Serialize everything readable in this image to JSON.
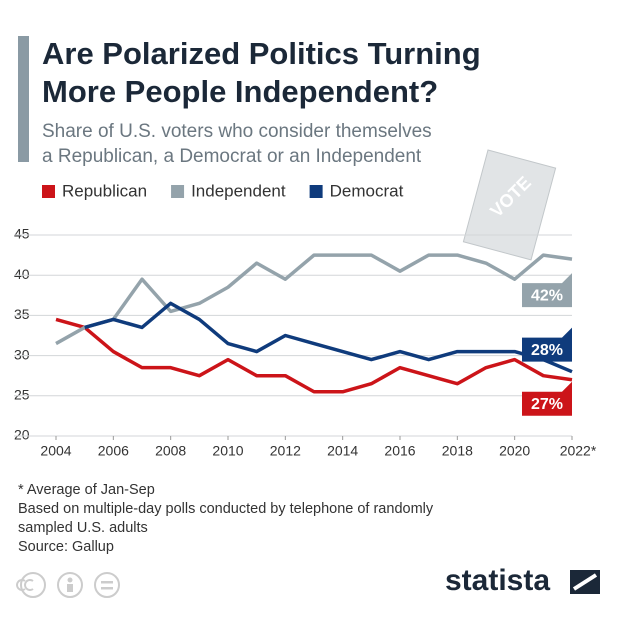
{
  "chart_data": {
    "type": "line",
    "title": [
      "Are Polarized Politics Turning",
      "More People Independent?"
    ],
    "subtitle": [
      "Share of U.S. voters who consider themselves",
      "a Republican, a Democrat or an Independent"
    ],
    "illustration_text": "VOTE",
    "x": [
      2004,
      2005,
      2006,
      2007,
      2008,
      2009,
      2010,
      2011,
      2012,
      2013,
      2014,
      2015,
      2016,
      2017,
      2018,
      2019,
      2020,
      2021,
      2022
    ],
    "series": [
      {
        "name": "Republican",
        "color": "#cc1419",
        "values": [
          34.5,
          33.5,
          30.5,
          28.5,
          28.5,
          27.5,
          29.5,
          27.5,
          27.5,
          25.5,
          25.5,
          26.5,
          28.5,
          27.5,
          26.5,
          28.5,
          29.5,
          27.5,
          27
        ],
        "value_labels": [
          null,
          null,
          null,
          null,
          null,
          null,
          null,
          null,
          null,
          null,
          null,
          null,
          null,
          null,
          null,
          null,
          null,
          null,
          "27%"
        ]
      },
      {
        "name": "Independent",
        "color": "#94a3ab",
        "values": [
          31.5,
          33.5,
          34.5,
          39.5,
          35.5,
          36.5,
          38.5,
          41.5,
          39.5,
          42.5,
          42.5,
          42.5,
          40.5,
          42.5,
          42.5,
          41.5,
          39.5,
          42.5,
          42
        ],
        "value_labels": [
          null,
          null,
          null,
          null,
          null,
          null,
          null,
          null,
          null,
          null,
          null,
          null,
          null,
          null,
          null,
          null,
          null,
          null,
          "42%"
        ]
      },
      {
        "name": "Democrat",
        "color": "#0f3b7c",
        "values": [
          null,
          33.5,
          34.5,
          33.5,
          36.5,
          34.5,
          31.5,
          30.5,
          32.5,
          31.5,
          30.5,
          29.5,
          30.5,
          29.5,
          30.5,
          30.5,
          30.5,
          29.5,
          28
        ],
        "value_labels": [
          null,
          null,
          null,
          null,
          null,
          null,
          null,
          null,
          null,
          null,
          null,
          null,
          null,
          null,
          null,
          null,
          null,
          null,
          "28%"
        ]
      }
    ],
    "xlim": [
      2004,
      2022
    ],
    "xticks": [
      2004,
      2006,
      2008,
      2010,
      2012,
      2014,
      2016,
      2018,
      2020,
      {
        "value": 2022,
        "label": "2022*"
      }
    ],
    "ylim": [
      20,
      45
    ],
    "yticks": [
      20,
      25,
      30,
      35,
      40,
      45
    ],
    "grid": true,
    "notes": [
      "* Average of Jan-Sep",
      "Based on multiple-day polls conducted by telephone of randomly",
      "sampled U.S. adults",
      "Source: Gallup"
    ],
    "brand": "statista"
  }
}
